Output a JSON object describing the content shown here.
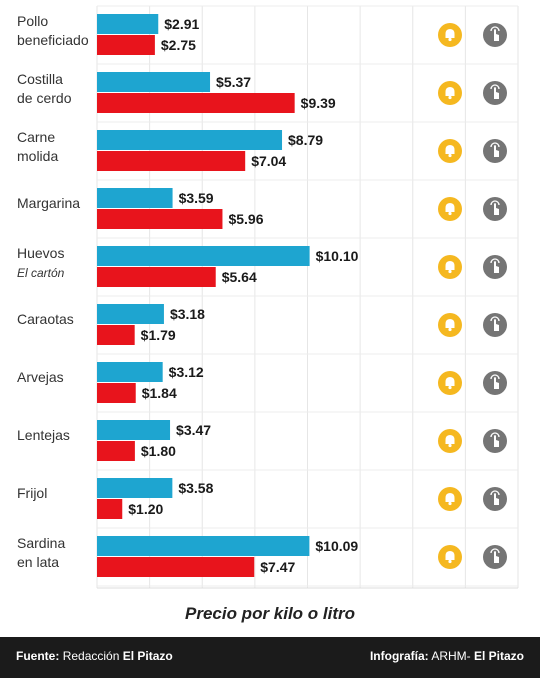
{
  "chart_data": {
    "type": "bar",
    "orientation": "horizontal",
    "categories": [
      [
        "Pollo",
        "beneficiado"
      ],
      [
        "Costilla",
        "de cerdo"
      ],
      [
        "Carne",
        "molida"
      ],
      [
        "Margarina"
      ],
      [
        "Huevos",
        "El cartón"
      ],
      [
        "Caraotas"
      ],
      [
        "Arvejas"
      ],
      [
        "Lentejas"
      ],
      [
        "Frijol"
      ],
      [
        "Sardina",
        "en lata"
      ]
    ],
    "series": [
      {
        "values": [
          2.91,
          5.37,
          8.79,
          3.59,
          10.1,
          3.18,
          3.12,
          3.47,
          3.58,
          10.09
        ],
        "color": "#1ea5d0"
      },
      {
        "values": [
          2.75,
          9.39,
          7.04,
          5.96,
          5.64,
          1.79,
          1.84,
          1.8,
          1.2,
          7.47
        ],
        "color": "#e8141c"
      }
    ],
    "value_labels": [
      [
        "$2.91",
        "$5.37",
        "$8.79",
        "$3.59",
        "$10.10",
        "$3.18",
        "$3.12",
        "$3.47",
        "$3.58",
        "$10.09"
      ],
      [
        "$2.75",
        "$9.39",
        "$7.04",
        "$5.96",
        "$5.64",
        "$1.79",
        "$1.84",
        "$1.80",
        "$1.20",
        "$7.47"
      ]
    ],
    "xlabel": "Precio por kilo o litro",
    "xlim": [
      0,
      20
    ],
    "grid": true,
    "legend": "none"
  },
  "icons": {
    "bell": {
      "name": "bell-icon",
      "color": "#f5b820"
    },
    "tap": {
      "name": "tap-icon",
      "color": "#757575"
    }
  },
  "footer": {
    "source_label": "Fuente:",
    "source_text": "Redacción",
    "source_brand": "El Pitazo",
    "credit_label": "Infografía:",
    "credit_text": "ARHM-",
    "credit_brand": "El Pitazo"
  }
}
